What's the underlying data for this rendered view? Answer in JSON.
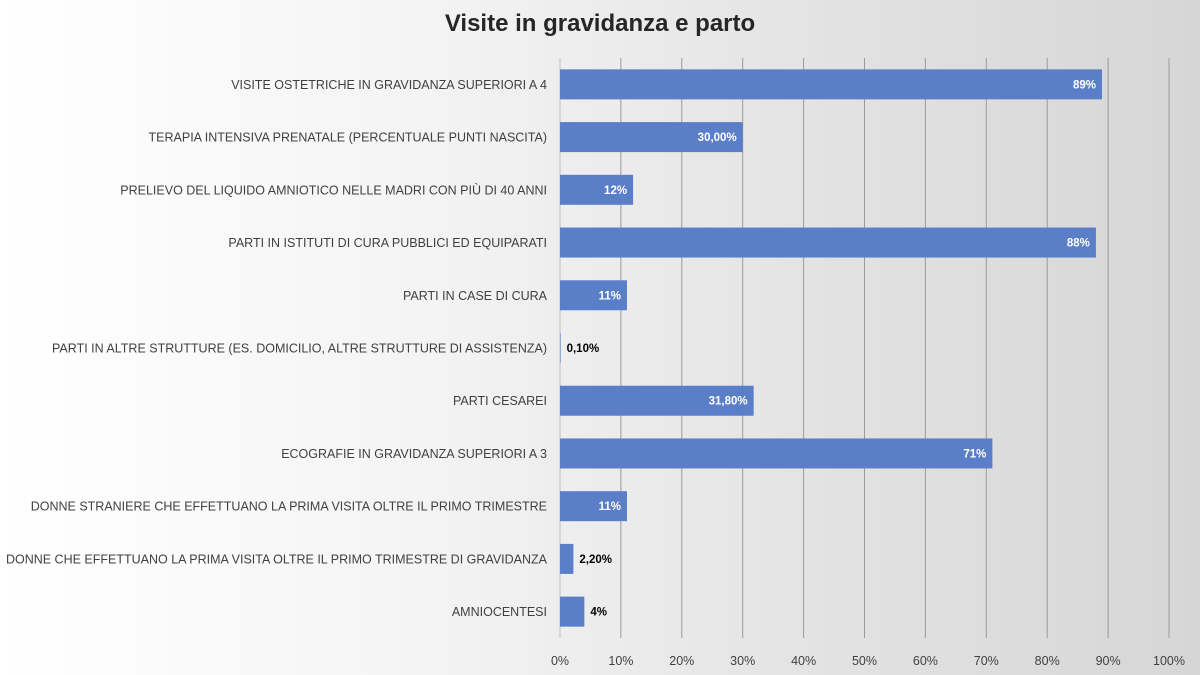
{
  "chart_data": {
    "type": "bar",
    "orientation": "horizontal",
    "title": "Visite in gravidanza e parto",
    "categories": [
      "VISITE OSTETRICHE IN GRAVIDANZA SUPERIORI A 4",
      "TERAPIA INTENSIVA PRENATALE (PERCENTUALE PUNTI NASCITA)",
      "PRELIEVO DEL LIQUIDO AMNIOTICO NELLE MADRI CON PIÙ DI 40 ANNI",
      "PARTI IN ISTITUTI DI CURA PUBBLICI ED EQUIPARATI",
      "PARTI IN CASE DI CURA",
      "PARTI IN ALTRE STRUTTURE (ES. DOMICILIO, ALTRE STRUTTURE DI ASSISTENZA)",
      "PARTI CESAREI",
      "ECOGRAFIE IN GRAVIDANZA SUPERIORI A 3",
      "DONNE STRANIERE CHE EFFETTUANO LA PRIMA VISITA OLTRE IL PRIMO TRIMESTRE",
      "DONNE CHE EFFETTUANO LA PRIMA VISITA OLTRE IL PRIMO TRIMESTRE DI GRAVIDANZA",
      "AMNIOCENTESI"
    ],
    "values": [
      89,
      30.0,
      12,
      88,
      11,
      0.1,
      31.8,
      71,
      11,
      2.2,
      4
    ],
    "data_labels": [
      "89%",
      "30,00%",
      "12%",
      "88%",
      "11%",
      "0,10%",
      "31,80%",
      "71%",
      "11%",
      "2,20%",
      "4%"
    ],
    "xlim": [
      0,
      100
    ],
    "x_ticks": [
      "0%",
      "10%",
      "20%",
      "30%",
      "40%",
      "50%",
      "60%",
      "70%",
      "80%",
      "90%",
      "100%"
    ],
    "grid": "vertical",
    "bar_color": "#5b7ec9",
    "label_color_inside": "#ffffff",
    "label_color_outside": "#000000",
    "gridline_color": "#9a9a9a",
    "xlabel": "",
    "ylabel": ""
  }
}
